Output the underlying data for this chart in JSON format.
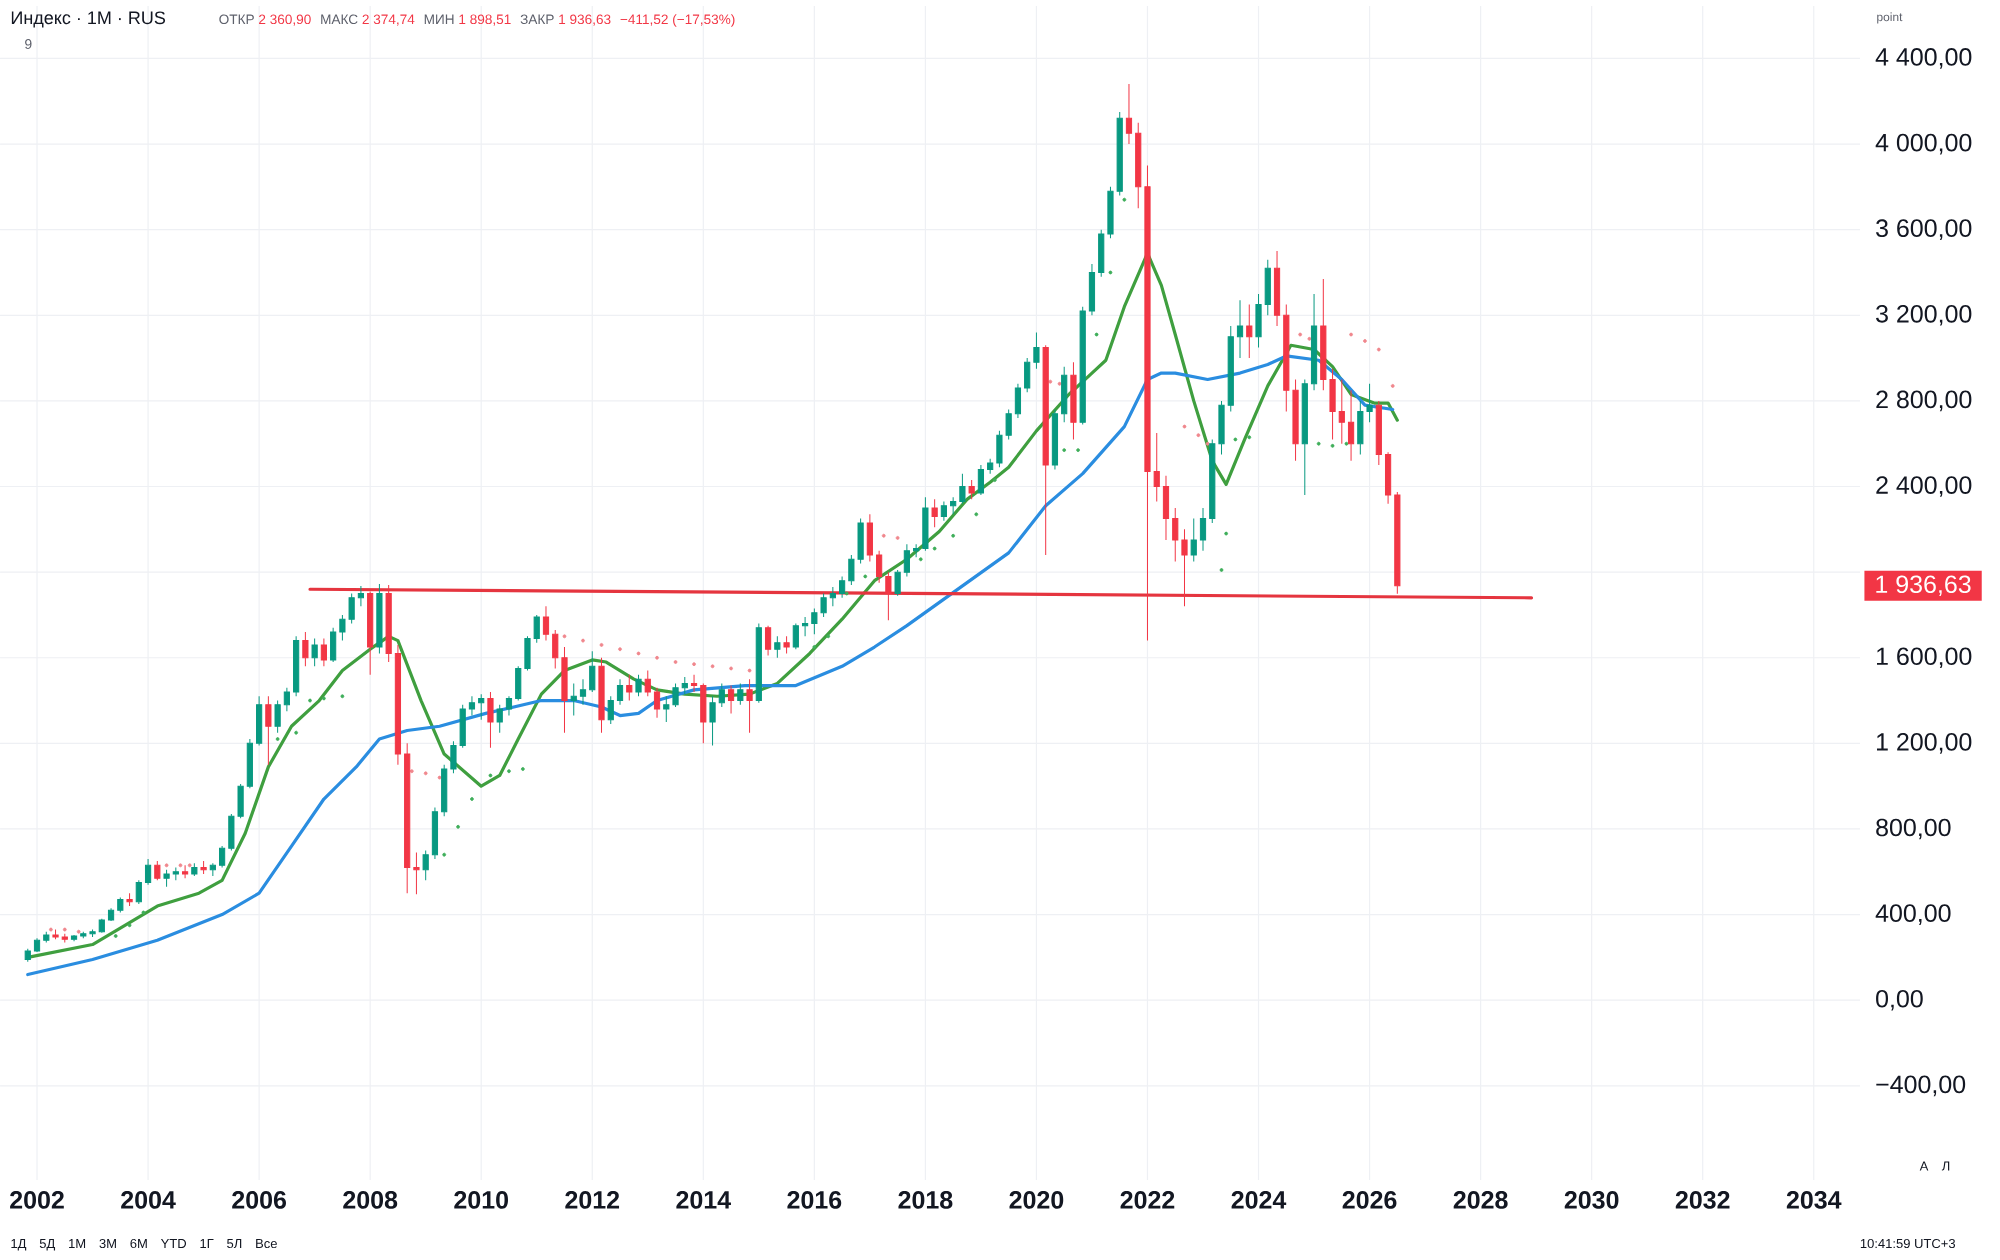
{
  "chart_data": {
    "type": "candlestick",
    "title": "Индекс · 1М · RUS",
    "annotations": [
      "ОТКР",
      "2 360,90",
      "МАКС",
      "2 374,74",
      "МИН",
      "1 898,51",
      "ЗАКР",
      "1 936,63",
      "−411,52 (−17,53%)",
      "9",
      "point",
      "1Д",
      "5Д",
      "1М",
      "3М",
      "6М",
      "YTD",
      "1Г",
      "5Л",
      "Все",
      "10:41:59 UTC+3",
      "А",
      "Л",
      "1 936,63"
    ],
    "xlim": [
      "2001-05",
      "2034-11"
    ],
    "ylim": [
      -840,
      4645
    ],
    "xticks": [
      "2002",
      "2004",
      "2006",
      "2008",
      "2010",
      "2012",
      "2014",
      "2016",
      "2018",
      "2020",
      "2022",
      "2024",
      "2026",
      "2028",
      "2030",
      "2032",
      "2034"
    ],
    "yticks": [
      {
        "value": -400,
        "label": "−400,00"
      },
      {
        "value": 0,
        "label": "0,00"
      },
      {
        "value": 400,
        "label": "400,00"
      },
      {
        "value": 800,
        "label": "800,00"
      },
      {
        "value": 1200,
        "label": "1 200,00"
      },
      {
        "value": 1600,
        "label": "1 600,00"
      },
      {
        "value": 2000,
        "label": null
      },
      {
        "value": 2400,
        "label": "2 400,00"
      },
      {
        "value": 2800,
        "label": "2 800,00"
      },
      {
        "value": 3200,
        "label": "3 200,00"
      },
      {
        "value": 3600,
        "label": "3 600,00"
      },
      {
        "value": 4000,
        "label": "4 000,00"
      },
      {
        "value": 4400,
        "label": "4 400,00"
      }
    ],
    "grid": true,
    "x": [
      "2001-11",
      "2002-01",
      "2002-03",
      "2002-05",
      "2002-07",
      "2002-09",
      "2002-11",
      "2003-01",
      "2003-03",
      "2003-05",
      "2003-07",
      "2003-09",
      "2003-11",
      "2004-01",
      "2004-03",
      "2004-05",
      "2004-07",
      "2004-09",
      "2004-11",
      "2005-01",
      "2005-03",
      "2005-05",
      "2005-07",
      "2005-09",
      "2005-11",
      "2006-01",
      "2006-03",
      "2006-05",
      "2006-07",
      "2006-09",
      "2006-11",
      "2007-01",
      "2007-03",
      "2007-05",
      "2007-07",
      "2007-09",
      "2007-11",
      "2008-01",
      "2008-03",
      "2008-05",
      "2008-07",
      "2008-09",
      "2008-11",
      "2009-01",
      "2009-03",
      "2009-05",
      "2009-07",
      "2009-09",
      "2009-11",
      "2010-01",
      "2010-03",
      "2010-05",
      "2010-07",
      "2010-09",
      "2010-11",
      "2011-01",
      "2011-03",
      "2011-05",
      "2011-07",
      "2011-09",
      "2011-11",
      "2012-01",
      "2012-03",
      "2012-05",
      "2012-07",
      "2012-09",
      "2012-11",
      "2013-01",
      "2013-03",
      "2013-05",
      "2013-07",
      "2013-09",
      "2013-11",
      "2014-01",
      "2014-03",
      "2014-05",
      "2014-07",
      "2014-09",
      "2014-11",
      "2015-01",
      "2015-03",
      "2015-05",
      "2015-07",
      "2015-09",
      "2015-11",
      "2016-01",
      "2016-03",
      "2016-05",
      "2016-07",
      "2016-09",
      "2016-11",
      "2017-01",
      "2017-03",
      "2017-05",
      "2017-07",
      "2017-09",
      "2017-11",
      "2018-01",
      "2018-03",
      "2018-05",
      "2018-07",
      "2018-09",
      "2018-11",
      "2019-01",
      "2019-03",
      "2019-05",
      "2019-07",
      "2019-09",
      "2019-11",
      "2020-01",
      "2020-03",
      "2020-05",
      "2020-07",
      "2020-09",
      "2020-11",
      "2021-01",
      "2021-03",
      "2021-05",
      "2021-07",
      "2021-09",
      "2021-11",
      "2022-01",
      "2022-03",
      "2022-05",
      "2022-07",
      "2022-09",
      "2022-11",
      "2023-01",
      "2023-03",
      "2023-05",
      "2023-07",
      "2023-09",
      "2023-11",
      "2024-01",
      "2024-03",
      "2024-05",
      "2024-07",
      "2024-09",
      "2024-11",
      "2025-01",
      "2025-03",
      "2025-05",
      "2025-07",
      "2025-09",
      "2025-11",
      "2026-01",
      "2026-03",
      "2026-05",
      "2026-07"
    ],
    "ohlc": [
      [
        190,
        240,
        180,
        230
      ],
      [
        230,
        290,
        225,
        280
      ],
      [
        280,
        320,
        270,
        305
      ],
      [
        305,
        330,
        285,
        295
      ],
      [
        295,
        310,
        270,
        285
      ],
      [
        285,
        305,
        275,
        300
      ],
      [
        300,
        320,
        290,
        310
      ],
      [
        310,
        330,
        295,
        320
      ],
      [
        320,
        380,
        315,
        375
      ],
      [
        375,
        430,
        370,
        420
      ],
      [
        420,
        480,
        410,
        470
      ],
      [
        470,
        500,
        440,
        460
      ],
      [
        460,
        560,
        450,
        550
      ],
      [
        550,
        660,
        540,
        630
      ],
      [
        630,
        650,
        560,
        570
      ],
      [
        570,
        610,
        530,
        590
      ],
      [
        590,
        620,
        560,
        600
      ],
      [
        600,
        630,
        570,
        590
      ],
      [
        590,
        640,
        580,
        620
      ],
      [
        620,
        650,
        590,
        610
      ],
      [
        610,
        640,
        580,
        630
      ],
      [
        630,
        720,
        620,
        710
      ],
      [
        710,
        870,
        700,
        860
      ],
      [
        860,
        1010,
        850,
        1000
      ],
      [
        1000,
        1220,
        990,
        1200
      ],
      [
        1200,
        1420,
        1190,
        1380
      ],
      [
        1380,
        1420,
        1100,
        1280
      ],
      [
        1280,
        1400,
        1250,
        1380
      ],
      [
        1380,
        1460,
        1350,
        1440
      ],
      [
        1440,
        1700,
        1420,
        1680
      ],
      [
        1680,
        1720,
        1560,
        1600
      ],
      [
        1600,
        1690,
        1560,
        1660
      ],
      [
        1660,
        1690,
        1560,
        1590
      ],
      [
        1590,
        1740,
        1580,
        1720
      ],
      [
        1720,
        1800,
        1680,
        1780
      ],
      [
        1780,
        1900,
        1760,
        1880
      ],
      [
        1880,
        1935,
        1840,
        1900
      ],
      [
        1900,
        1910,
        1520,
        1650
      ],
      [
        1650,
        1944,
        1620,
        1900
      ],
      [
        1900,
        1940,
        1580,
        1620
      ],
      [
        1620,
        1660,
        1100,
        1150
      ],
      [
        1150,
        1200,
        500,
        620
      ],
      [
        620,
        690,
        495,
        610
      ],
      [
        610,
        700,
        560,
        680
      ],
      [
        680,
        900,
        660,
        880
      ],
      [
        880,
        1100,
        860,
        1080
      ],
      [
        1080,
        1210,
        1060,
        1190
      ],
      [
        1190,
        1380,
        1180,
        1360
      ],
      [
        1360,
        1420,
        1330,
        1390
      ],
      [
        1390,
        1430,
        1310,
        1410
      ],
      [
        1410,
        1440,
        1180,
        1300
      ],
      [
        1300,
        1380,
        1250,
        1360
      ],
      [
        1360,
        1420,
        1330,
        1410
      ],
      [
        1410,
        1560,
        1400,
        1550
      ],
      [
        1550,
        1700,
        1540,
        1690
      ],
      [
        1690,
        1800,
        1670,
        1790
      ],
      [
        1790,
        1840,
        1680,
        1710
      ],
      [
        1710,
        1730,
        1550,
        1600
      ],
      [
        1600,
        1650,
        1250,
        1400
      ],
      [
        1400,
        1480,
        1330,
        1420
      ],
      [
        1420,
        1500,
        1380,
        1450
      ],
      [
        1450,
        1630,
        1440,
        1560
      ],
      [
        1560,
        1600,
        1250,
        1310
      ],
      [
        1310,
        1420,
        1290,
        1400
      ],
      [
        1400,
        1500,
        1380,
        1470
      ],
      [
        1470,
        1520,
        1400,
        1440
      ],
      [
        1440,
        1520,
        1420,
        1500
      ],
      [
        1500,
        1540,
        1420,
        1440
      ],
      [
        1440,
        1460,
        1320,
        1360
      ],
      [
        1360,
        1420,
        1300,
        1380
      ],
      [
        1380,
        1480,
        1370,
        1460
      ],
      [
        1460,
        1510,
        1430,
        1480
      ],
      [
        1480,
        1520,
        1440,
        1470
      ],
      [
        1470,
        1480,
        1200,
        1300
      ],
      [
        1300,
        1420,
        1190,
        1390
      ],
      [
        1390,
        1480,
        1370,
        1450
      ],
      [
        1450,
        1470,
        1340,
        1400
      ],
      [
        1400,
        1480,
        1380,
        1450
      ],
      [
        1450,
        1500,
        1250,
        1400
      ],
      [
        1400,
        1760,
        1390,
        1740
      ],
      [
        1740,
        1750,
        1610,
        1640
      ],
      [
        1640,
        1700,
        1600,
        1670
      ],
      [
        1670,
        1700,
        1620,
        1650
      ],
      [
        1650,
        1760,
        1640,
        1750
      ],
      [
        1750,
        1790,
        1700,
        1760
      ],
      [
        1760,
        1830,
        1710,
        1810
      ],
      [
        1810,
        1900,
        1790,
        1880
      ],
      [
        1880,
        1930,
        1840,
        1900
      ],
      [
        1900,
        1980,
        1880,
        1960
      ],
      [
        1960,
        2080,
        1940,
        2060
      ],
      [
        2060,
        2250,
        2040,
        2230
      ],
      [
        2230,
        2270,
        2050,
        2080
      ],
      [
        2080,
        2100,
        1950,
        1980
      ],
      [
        1980,
        2000,
        1775,
        1900
      ],
      [
        1900,
        2010,
        1890,
        2000
      ],
      [
        2000,
        2130,
        1980,
        2100
      ],
      [
        2100,
        2130,
        2070,
        2110
      ],
      [
        2110,
        2350,
        2100,
        2300
      ],
      [
        2300,
        2340,
        2210,
        2260
      ],
      [
        2260,
        2330,
        2240,
        2310
      ],
      [
        2310,
        2350,
        2270,
        2330
      ],
      [
        2330,
        2460,
        2320,
        2400
      ],
      [
        2400,
        2430,
        2340,
        2370
      ],
      [
        2370,
        2500,
        2360,
        2480
      ],
      [
        2480,
        2530,
        2460,
        2510
      ],
      [
        2510,
        2660,
        2490,
        2640
      ],
      [
        2640,
        2760,
        2620,
        2740
      ],
      [
        2740,
        2880,
        2720,
        2860
      ],
      [
        2860,
        3000,
        2840,
        2980
      ],
      [
        2980,
        3120,
        2950,
        3050
      ],
      [
        3050,
        3060,
        2080,
        2500
      ],
      [
        2500,
        2760,
        2480,
        2740
      ],
      [
        2740,
        2960,
        2700,
        2920
      ],
      [
        2920,
        2980,
        2620,
        2700
      ],
      [
        2700,
        3240,
        2690,
        3220
      ],
      [
        3220,
        3440,
        3200,
        3400
      ],
      [
        3400,
        3600,
        3380,
        3580
      ],
      [
        3580,
        3800,
        3560,
        3780
      ],
      [
        3780,
        4150,
        3760,
        4120
      ],
      [
        4120,
        4280,
        4000,
        4050
      ],
      [
        4050,
        4100,
        3700,
        3800
      ],
      [
        3800,
        3900,
        1680,
        2470
      ],
      [
        2470,
        2650,
        2330,
        2400
      ],
      [
        2400,
        2450,
        2150,
        2250
      ],
      [
        2250,
        2300,
        2050,
        2150
      ],
      [
        2150,
        2200,
        1840,
        2080
      ],
      [
        2080,
        2250,
        2050,
        2150
      ],
      [
        2150,
        2300,
        2100,
        2250
      ],
      [
        2250,
        2620,
        2230,
        2600
      ],
      [
        2600,
        2800,
        2550,
        2780
      ],
      [
        2780,
        3150,
        2750,
        3100
      ],
      [
        3100,
        3270,
        3000,
        3150
      ],
      [
        3150,
        3250,
        3000,
        3100
      ],
      [
        3100,
        3300,
        3050,
        3250
      ],
      [
        3250,
        3460,
        3200,
        3420
      ],
      [
        3420,
        3500,
        3150,
        3200
      ],
      [
        3200,
        3250,
        2750,
        2850
      ],
      [
        2850,
        2900,
        2520,
        2600
      ],
      [
        2600,
        2900,
        2360,
        2880
      ],
      [
        2880,
        3300,
        2850,
        3150
      ],
      [
        3150,
        3370,
        2850,
        2900
      ],
      [
        2900,
        2950,
        2620,
        2750
      ],
      [
        2750,
        2900,
        2600,
        2700
      ],
      [
        2700,
        2850,
        2520,
        2600
      ],
      [
        2600,
        2800,
        2550,
        2750
      ],
      [
        2750,
        2880,
        2700,
        2780
      ],
      [
        2780,
        2800,
        2500,
        2550
      ],
      [
        2550,
        2560,
        2320,
        2360.9
      ],
      [
        2360.9,
        2374.74,
        1898.51,
        1936.63
      ]
    ],
    "colors": [
      "#089981",
      "#089981",
      "#089981",
      "#f23645",
      "#f23645",
      "#089981",
      "#089981",
      "#089981",
      "#089981",
      "#089981",
      "#089981",
      "#f23645",
      "#089981",
      "#089981",
      "#f23645",
      "#089981",
      "#089981",
      "#f23645",
      "#089981",
      "#f23645",
      "#089981",
      "#089981",
      "#089981",
      "#089981",
      "#089981",
      "#089981",
      "#f23645",
      "#089981",
      "#089981",
      "#089981",
      "#f23645",
      "#089981",
      "#f23645",
      "#089981",
      "#089981",
      "#089981",
      "#089981",
      "#f23645",
      "#089981",
      "#f23645",
      "#f23645",
      "#f23645",
      "#f23645",
      "#089981",
      "#089981",
      "#089981",
      "#089981",
      "#089981",
      "#089981",
      "#089981",
      "#f23645",
      "#089981",
      "#089981",
      "#089981",
      "#089981",
      "#089981",
      "#f23645",
      "#f23645",
      "#f23645",
      "#089981",
      "#089981",
      "#089981",
      "#f23645",
      "#089981",
      "#089981",
      "#f23645",
      "#089981",
      "#f23645",
      "#f23645",
      "#089981",
      "#089981",
      "#089981",
      "#f23645",
      "#f23645",
      "#089981",
      "#089981",
      "#f23645",
      "#089981",
      "#f23645",
      "#089981",
      "#f23645",
      "#089981",
      "#f23645",
      "#089981",
      "#089981",
      "#089981",
      "#089981",
      "#089981",
      "#089981",
      "#089981",
      "#089981",
      "#f23645",
      "#f23645",
      "#f23645",
      "#089981",
      "#089981",
      "#089981",
      "#089981",
      "#f23645",
      "#089981",
      "#089981",
      "#089981",
      "#f23645",
      "#089981",
      "#089981",
      "#089981",
      "#089981",
      "#089981",
      "#089981",
      "#089981",
      "#f23645",
      "#089981",
      "#089981",
      "#f23645",
      "#089981",
      "#089981",
      "#089981",
      "#089981",
      "#089981",
      "#f23645",
      "#f23645",
      "#f23645",
      "#f23645",
      "#f23645",
      "#f23645",
      "#f23645",
      "#089981",
      "#089981",
      "#089981",
      "#089981",
      "#089981",
      "#089981",
      "#f23645",
      "#089981",
      "#089981",
      "#f23645",
      "#f23645",
      "#f23645",
      "#089981",
      "#089981",
      "#f23645",
      "#f23645",
      "#f23645",
      "#f23645",
      "#089981",
      "#089981",
      "#f23645",
      "#f23645",
      "#f23645"
    ],
    "series": [
      {
        "type": "line",
        "color": "#3f9f3f",
        "x": [
          "2001-11",
          "2003-01",
          "2004-03",
          "2004-12",
          "2005-05",
          "2005-10",
          "2006-03",
          "2006-08",
          "2007-02",
          "2007-07",
          "2008-01",
          "2008-05",
          "2008-07",
          "2008-12",
          "2009-05",
          "2010-01",
          "2010-05",
          "2010-09",
          "2011-02",
          "2011-07",
          "2012-01",
          "2012-04",
          "2012-10",
          "2013-03",
          "2013-09",
          "2014-04",
          "2014-11",
          "2015-05",
          "2015-12",
          "2016-07",
          "2017-02",
          "2017-09",
          "2018-04",
          "2018-10",
          "2019-03",
          "2019-07",
          "2020-01",
          "2020-08",
          "2021-01",
          "2021-04",
          "2021-08",
          "2022-01",
          "2022-04",
          "2022-07",
          "2022-11",
          "2023-03",
          "2023-06",
          "2023-10",
          "2024-03",
          "2024-08",
          "2025-01",
          "2025-05",
          "2025-09",
          "2026-02",
          "2026-05",
          "2026-07"
        ],
        "values": [
          200,
          260,
          440,
          500,
          560,
          780,
          1090,
          1280,
          1400,
          1540,
          1640,
          1700,
          1680,
          1400,
          1150,
          1000,
          1050,
          1220,
          1430,
          1540,
          1590,
          1580,
          1500,
          1450,
          1430,
          1420,
          1430,
          1480,
          1620,
          1780,
          1960,
          2060,
          2190,
          2340,
          2420,
          2490,
          2660,
          2830,
          2930,
          2990,
          3240,
          3490,
          3340,
          3110,
          2800,
          2520,
          2410,
          2620,
          2870,
          3060,
          3040,
          2960,
          2830,
          2790,
          2790,
          2710
        ]
      },
      {
        "type": "line",
        "color": "#2a8de0",
        "x": [
          "2001-11",
          "2003-01",
          "2004-03",
          "2005-05",
          "2006-01",
          "2006-08",
          "2007-03",
          "2007-10",
          "2008-03",
          "2008-09",
          "2009-04",
          "2010-02",
          "2011-02",
          "2011-09",
          "2012-03",
          "2012-07",
          "2012-11",
          "2013-03",
          "2013-11",
          "2014-10",
          "2015-09",
          "2016-07",
          "2017-02",
          "2017-09",
          "2018-08",
          "2019-07",
          "2020-03",
          "2020-11",
          "2021-08",
          "2022-01",
          "2022-04",
          "2022-07",
          "2023-02",
          "2023-09",
          "2024-03",
          "2024-07",
          "2025-02",
          "2025-07",
          "2025-12",
          "2026-06"
        ],
        "values": [
          120,
          190,
          280,
          400,
          500,
          720,
          940,
          1090,
          1220,
          1260,
          1280,
          1340,
          1400,
          1400,
          1370,
          1330,
          1340,
          1400,
          1450,
          1470,
          1470,
          1560,
          1650,
          1750,
          1920,
          2090,
          2310,
          2460,
          2680,
          2900,
          2930,
          2930,
          2900,
          2930,
          2970,
          3010,
          2990,
          2900,
          2780,
          2760
        ]
      },
      {
        "type": "line",
        "color": "#e5353f",
        "x": [
          "2006-12",
          "2028-12"
        ],
        "values": [
          1920,
          1880
        ]
      },
      {
        "type": "scatter",
        "marker": "circle",
        "color": "#f0878d",
        "x": [
          "2002-04",
          "2002-07",
          "2002-10",
          "2004-05",
          "2004-08",
          "2004-10",
          "2008-10",
          "2009-01",
          "2009-04",
          "2011-07",
          "2011-11",
          "2012-03",
          "2012-07",
          "2012-11",
          "2013-03",
          "2013-07",
          "2013-11",
          "2014-03",
          "2014-07",
          "2014-11",
          "2017-04",
          "2017-07",
          "2020-04",
          "2020-06",
          "2022-09",
          "2022-12",
          "2023-02",
          "2024-10",
          "2024-12",
          "2025-09",
          "2025-12",
          "2026-03",
          "2026-06"
        ],
        "values": [
          330,
          330,
          320,
          630,
          630,
          630,
          1070,
          1060,
          1040,
          1700,
          1680,
          1660,
          1640,
          1620,
          1600,
          1580,
          1570,
          1560,
          1550,
          1540,
          2170,
          2160,
          2890,
          2880,
          2680,
          2640,
          2600,
          3110,
          3090,
          3110,
          3080,
          3040,
          2870
        ]
      },
      {
        "type": "scatter",
        "marker": "circle",
        "color": "#3fae5a",
        "x": [
          "2003-06",
          "2003-09",
          "2003-12",
          "2006-05",
          "2006-09",
          "2006-12",
          "2007-03",
          "2007-07",
          "2009-05",
          "2009-08",
          "2009-11",
          "2010-03",
          "2010-07",
          "2010-10",
          "2016-01",
          "2016-04",
          "2016-08",
          "2016-12",
          "2017-12",
          "2018-03",
          "2018-07",
          "2018-12",
          "2019-04",
          "2020-07",
          "2020-10",
          "2021-02",
          "2021-05",
          "2021-08",
          "2023-05",
          "2023-06",
          "2023-08",
          "2023-11",
          "2025-02",
          "2025-05",
          "2025-08"
        ],
        "values": [
          300,
          350,
          410,
          1220,
          1250,
          1400,
          1410,
          1420,
          680,
          810,
          940,
          1050,
          1070,
          1080,
          1650,
          1700,
          1900,
          1980,
          2060,
          2110,
          2170,
          2270,
          2430,
          2570,
          2570,
          3110,
          3400,
          3740,
          2010,
          2180,
          2620,
          2630,
          2600,
          2590,
          2600
        ]
      }
    ]
  }
}
